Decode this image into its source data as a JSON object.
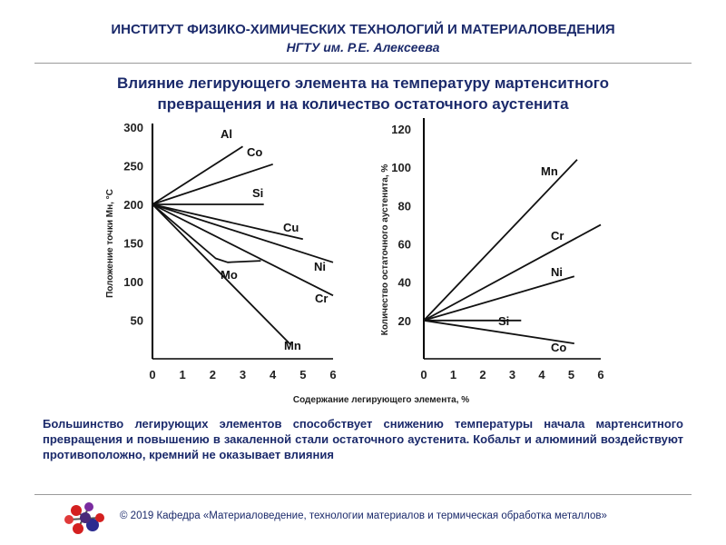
{
  "header": {
    "institute": "ИНСТИТУТ ФИЗИКО-ХИМИЧЕСКИХ ТЕХНОЛОГИЙ И МАТЕРИАЛОВЕДЕНИЯ",
    "university": "НГТУ им. Р.Е. Алексеева"
  },
  "slide": {
    "title_line1": "Влияние легирующего элемента на температуру мартенситного",
    "title_line2": "превращения и на количество остаточного аустенита",
    "body": "Большинство легирующих элементов способствует снижению температуры начала мартенситного превращения и повышению в закаленной стали остаточного аустенита. Кобальт и алюминий воздействуют противоположно, кремний не оказывает влияния"
  },
  "footer": {
    "copyright": "© 2019 Кафедра «Материаловедение, технологии материалов и термическая обработка металлов»"
  },
  "logo_icon": "molecule-logo-icon",
  "chart_data": [
    {
      "type": "line",
      "ylabel": "Положение точки Мн, °С",
      "xlabel": "Содержание легирующего элемента, %",
      "xlim": [
        0,
        6
      ],
      "ylim": [
        0,
        300
      ],
      "xticks": [
        0,
        1,
        2,
        3,
        4,
        5,
        6
      ],
      "yticks": [
        50,
        100,
        150,
        200,
        250,
        300
      ],
      "series": [
        {
          "name": "Al",
          "x": [
            0,
            3
          ],
          "y": [
            200,
            275
          ]
        },
        {
          "name": "Co",
          "x": [
            0,
            4
          ],
          "y": [
            200,
            252
          ]
        },
        {
          "name": "Si",
          "x": [
            0,
            3.7
          ],
          "y": [
            200,
            200
          ]
        },
        {
          "name": "Cu",
          "x": [
            0,
            5
          ],
          "y": [
            200,
            155
          ]
        },
        {
          "name": "Ni",
          "x": [
            0,
            6
          ],
          "y": [
            200,
            125
          ]
        },
        {
          "name": "Cr",
          "x": [
            0,
            6
          ],
          "y": [
            200,
            82
          ]
        },
        {
          "name": "Mo",
          "x": [
            0,
            2.1,
            2.5,
            3.6
          ],
          "y": [
            200,
            130,
            125,
            127
          ]
        },
        {
          "name": "Mn",
          "x": [
            0,
            4.6
          ],
          "y": [
            200,
            18
          ]
        }
      ]
    },
    {
      "type": "line",
      "ylabel": "Количество остаточного аустенита, %",
      "xlabel": "",
      "xlim": [
        0,
        6
      ],
      "ylim": [
        0,
        120
      ],
      "xticks": [
        0,
        1,
        2,
        3,
        4,
        5,
        6
      ],
      "yticks": [
        20,
        40,
        60,
        80,
        100,
        120
      ],
      "series": [
        {
          "name": "Mn",
          "x": [
            0,
            5.2
          ],
          "y": [
            20,
            104
          ]
        },
        {
          "name": "Cr",
          "x": [
            0,
            6
          ],
          "y": [
            20,
            70
          ]
        },
        {
          "name": "Ni",
          "x": [
            0,
            5.1
          ],
          "y": [
            20,
            43
          ]
        },
        {
          "name": "Si",
          "x": [
            0,
            3.3
          ],
          "y": [
            20,
            20
          ]
        },
        {
          "name": "Co",
          "x": [
            0,
            5.1
          ],
          "y": [
            20,
            8
          ]
        }
      ]
    }
  ]
}
